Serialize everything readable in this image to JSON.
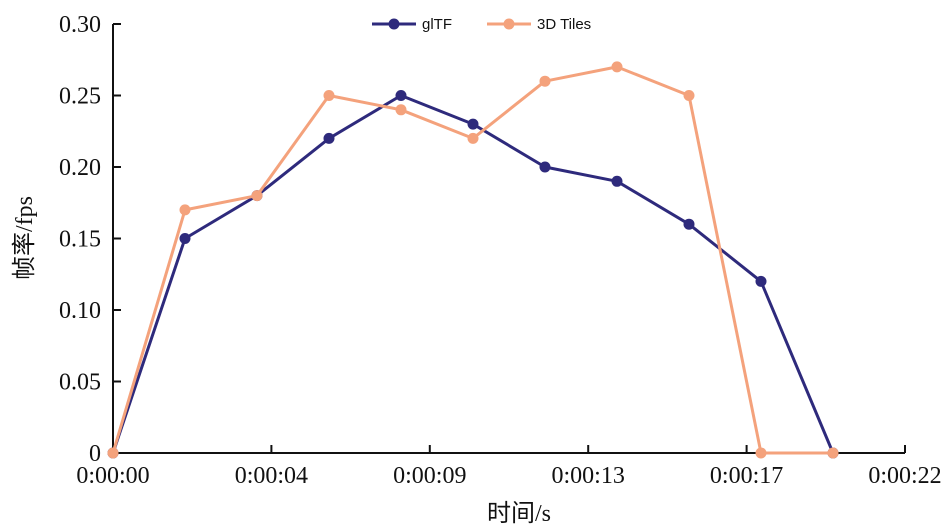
{
  "chart_data": {
    "type": "line",
    "title": "",
    "xlabel": "时间/s",
    "ylabel": "帧率/fps",
    "x": [
      0,
      1,
      2,
      3,
      4,
      5,
      6,
      7,
      8,
      9,
      10
    ],
    "x_tick_labels": [
      "0:00:00",
      "0:00:04",
      "0:00:09",
      "0:00:13",
      "0:00:17",
      "0:00:22"
    ],
    "x_tick_positions": [
      0,
      2.2,
      4.4,
      6.6,
      8.8,
      11
    ],
    "xlim": [
      0,
      11
    ],
    "y_tick_labels": [
      "0",
      "0.05",
      "0.10",
      "0.15",
      "0.20",
      "0.25",
      "0.30"
    ],
    "y_ticks": [
      0,
      0.05,
      0.1,
      0.15,
      0.2,
      0.25,
      0.3
    ],
    "ylim": [
      0,
      0.3
    ],
    "grid": false,
    "legend_position": "top-center",
    "series": [
      {
        "name": "glTF",
        "color": "#2e2a7c",
        "values": [
          0,
          0.15,
          0.18,
          0.22,
          0.25,
          0.23,
          0.2,
          0.19,
          0.16,
          0.12,
          0
        ]
      },
      {
        "name": "3D Tiles",
        "color": "#f4a27c",
        "values": [
          0,
          0.17,
          0.18,
          0.25,
          0.24,
          0.22,
          0.26,
          0.27,
          0.25,
          0,
          0
        ]
      }
    ]
  }
}
